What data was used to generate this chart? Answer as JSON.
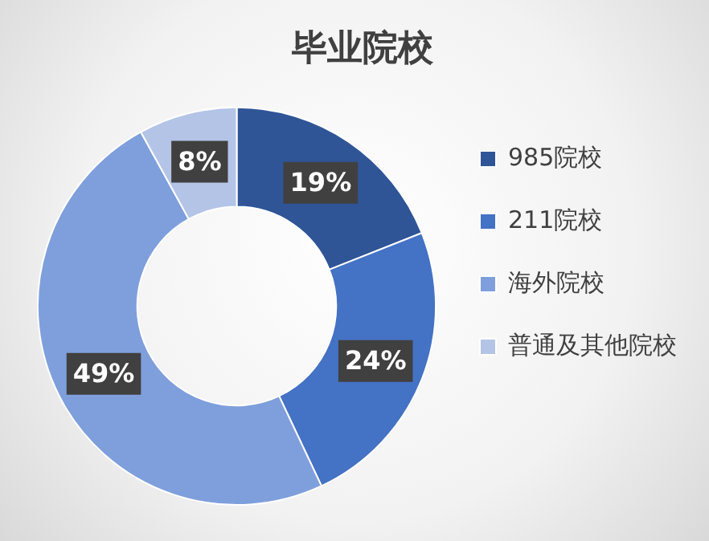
{
  "chart_data": {
    "type": "donut",
    "title": "毕业院校",
    "categories": [
      "985院校",
      "211院校",
      "海外院校",
      "普通及其他院校"
    ],
    "values": [
      19,
      24,
      49,
      8
    ],
    "colors": [
      "#2f5597",
      "#4472c4",
      "#7f9fdc",
      "#b4c4e7"
    ],
    "value_labels": [
      "19%",
      "24%",
      "49%",
      "8%"
    ],
    "legend": "right"
  }
}
